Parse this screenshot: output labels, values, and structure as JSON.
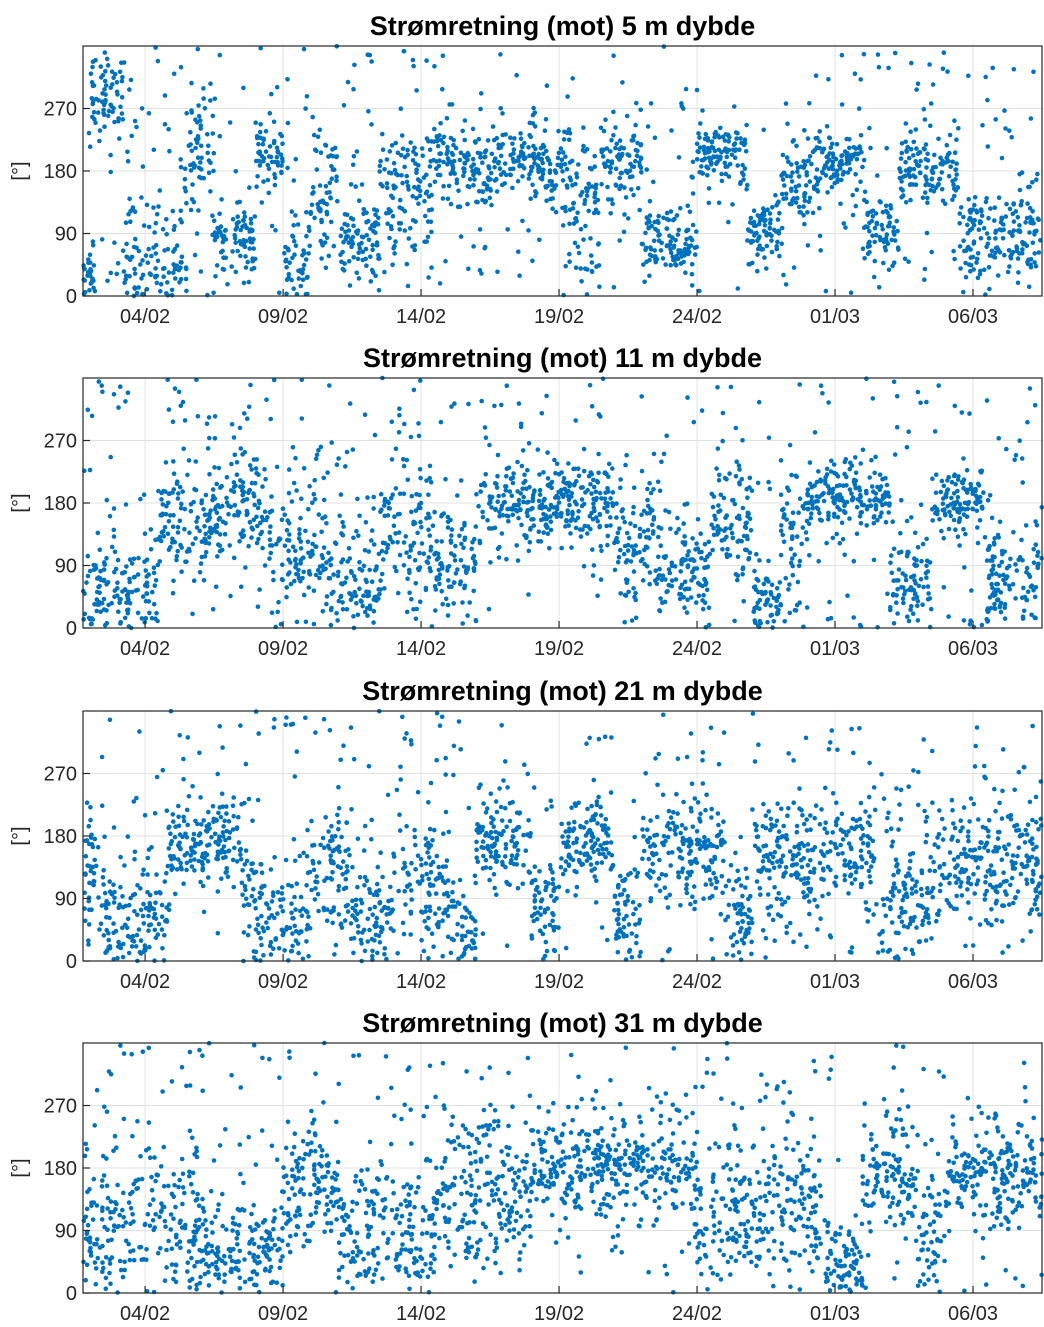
{
  "figure": {
    "background": "#ffffff",
    "point_color": "#0072BD",
    "grid_color": "#e2e2e2",
    "axis_color": "#262626"
  },
  "chart_data": [
    {
      "type": "scatter",
      "title": "Strømretning (mot) 5 m dybde",
      "ylabel": "[°]",
      "xlabel": "",
      "x_ticks": [
        "04/02",
        "09/02",
        "14/02",
        "19/02",
        "24/02",
        "01/03",
        "06/03"
      ],
      "y_ticks": [
        "0",
        "90",
        "180",
        "270"
      ],
      "ylim": [
        0,
        360
      ],
      "x_range_dates": [
        "2019-02-01T18:00",
        "2019-03-08T12:00"
      ],
      "grid": true,
      "seed": 11,
      "segments": [
        {
          "start": 1.75,
          "end": 2.2,
          "center": 25,
          "spread": 20
        },
        {
          "start": 2.0,
          "end": 3.2,
          "center": 285,
          "spread": 30
        },
        {
          "start": 3.2,
          "end": 4.2,
          "center": 40,
          "spread": 40
        },
        {
          "start": 4.2,
          "end": 5.5,
          "center": 60,
          "spread": 55
        },
        {
          "start": 5.5,
          "end": 6.5,
          "center": 215,
          "spread": 45
        },
        {
          "start": 6.5,
          "end": 8.0,
          "center": 85,
          "spread": 25
        },
        {
          "start": 8.0,
          "end": 9.0,
          "center": 200,
          "spread": 25
        },
        {
          "start": 9.0,
          "end": 10.0,
          "center": 40,
          "spread": 40
        },
        {
          "start": 10.0,
          "end": 11.0,
          "center": 150,
          "spread": 50
        },
        {
          "start": 11.0,
          "end": 12.5,
          "center": 75,
          "spread": 30
        },
        {
          "start": 12.5,
          "end": 14.5,
          "center": 155,
          "spread": 45
        },
        {
          "start": 14.5,
          "end": 16.5,
          "center": 185,
          "spread": 30
        },
        {
          "start": 16.5,
          "end": 18.5,
          "center": 195,
          "spread": 25
        },
        {
          "start": 18.5,
          "end": 19.5,
          "center": 170,
          "spread": 40
        },
        {
          "start": 19.5,
          "end": 20.5,
          "center": 120,
          "spread": 55
        },
        {
          "start": 20.5,
          "end": 22.0,
          "center": 195,
          "spread": 30
        },
        {
          "start": 22.0,
          "end": 24.0,
          "center": 75,
          "spread": 25
        },
        {
          "start": 24.0,
          "end": 25.8,
          "center": 205,
          "spread": 20
        },
        {
          "start": 25.8,
          "end": 27.0,
          "center": 95,
          "spread": 30
        },
        {
          "start": 27.0,
          "end": 28.5,
          "center": 170,
          "spread": 40
        },
        {
          "start": 28.5,
          "end": 30.0,
          "center": 195,
          "spread": 20
        },
        {
          "start": 30.0,
          "end": 31.3,
          "center": 90,
          "spread": 35
        },
        {
          "start": 31.3,
          "end": 33.5,
          "center": 180,
          "spread": 25
        },
        {
          "start": 33.5,
          "end": 35.0,
          "center": 80,
          "spread": 40
        },
        {
          "start": 35.0,
          "end": 36.5,
          "center": 90,
          "spread": 40
        }
      ]
    },
    {
      "type": "scatter",
      "title": "Strømretning (mot) 11 m dybde",
      "ylabel": "[°]",
      "xlabel": "",
      "x_ticks": [
        "04/02",
        "09/02",
        "14/02",
        "19/02",
        "24/02",
        "01/03",
        "06/03"
      ],
      "y_ticks": [
        "0",
        "90",
        "180",
        "270"
      ],
      "ylim": [
        0,
        360
      ],
      "x_range_dates": [
        "2019-02-01T18:00",
        "2019-03-08T12:00"
      ],
      "grid": true,
      "seed": 23,
      "segments": [
        {
          "start": 1.75,
          "end": 4.5,
          "center": 45,
          "spread": 40
        },
        {
          "start": 4.5,
          "end": 6.5,
          "center": 150,
          "spread": 45
        },
        {
          "start": 6.5,
          "end": 8.5,
          "center": 170,
          "spread": 35
        },
        {
          "start": 8.5,
          "end": 10.5,
          "center": 110,
          "spread": 55
        },
        {
          "start": 10.5,
          "end": 12.5,
          "center": 60,
          "spread": 45
        },
        {
          "start": 12.5,
          "end": 14.5,
          "center": 140,
          "spread": 55
        },
        {
          "start": 14.5,
          "end": 16.0,
          "center": 80,
          "spread": 45
        },
        {
          "start": 16.0,
          "end": 21.0,
          "center": 180,
          "spread": 30
        },
        {
          "start": 21.0,
          "end": 22.5,
          "center": 130,
          "spread": 50
        },
        {
          "start": 22.5,
          "end": 24.5,
          "center": 75,
          "spread": 40
        },
        {
          "start": 24.5,
          "end": 26.0,
          "center": 160,
          "spread": 50
        },
        {
          "start": 26.0,
          "end": 27.0,
          "center": 40,
          "spread": 25
        },
        {
          "start": 27.0,
          "end": 28.0,
          "center": 110,
          "spread": 55
        },
        {
          "start": 28.0,
          "end": 31.0,
          "center": 190,
          "spread": 25
        },
        {
          "start": 31.0,
          "end": 32.5,
          "center": 70,
          "spread": 40
        },
        {
          "start": 32.5,
          "end": 34.5,
          "center": 180,
          "spread": 25
        },
        {
          "start": 34.5,
          "end": 36.5,
          "center": 70,
          "spread": 40
        }
      ]
    },
    {
      "type": "scatter",
      "title": "Strømretning (mot) 21 m dybde",
      "ylabel": "[°]",
      "xlabel": "",
      "x_ticks": [
        "04/02",
        "09/02",
        "14/02",
        "19/02",
        "24/02",
        "01/03",
        "06/03"
      ],
      "y_ticks": [
        "0",
        "90",
        "180",
        "270"
      ],
      "ylim": [
        0,
        360
      ],
      "x_range_dates": [
        "2019-02-01T18:00",
        "2019-03-08T12:00"
      ],
      "grid": true,
      "seed": 37,
      "segments": [
        {
          "start": 1.75,
          "end": 2.5,
          "center": 120,
          "spread": 60
        },
        {
          "start": 2.5,
          "end": 4.8,
          "center": 55,
          "spread": 40
        },
        {
          "start": 4.8,
          "end": 7.5,
          "center": 170,
          "spread": 30
        },
        {
          "start": 7.5,
          "end": 10.0,
          "center": 65,
          "spread": 45
        },
        {
          "start": 10.0,
          "end": 11.5,
          "center": 130,
          "spread": 50
        },
        {
          "start": 11.5,
          "end": 13.0,
          "center": 60,
          "spread": 45
        },
        {
          "start": 13.0,
          "end": 15.0,
          "center": 100,
          "spread": 50
        },
        {
          "start": 15.0,
          "end": 16.0,
          "center": 40,
          "spread": 35
        },
        {
          "start": 16.0,
          "end": 18.0,
          "center": 170,
          "spread": 30
        },
        {
          "start": 18.0,
          "end": 19.0,
          "center": 80,
          "spread": 40
        },
        {
          "start": 19.0,
          "end": 21.0,
          "center": 170,
          "spread": 35
        },
        {
          "start": 21.0,
          "end": 22.0,
          "center": 60,
          "spread": 45
        },
        {
          "start": 22.0,
          "end": 25.0,
          "center": 160,
          "spread": 40
        },
        {
          "start": 25.0,
          "end": 26.0,
          "center": 60,
          "spread": 45
        },
        {
          "start": 26.0,
          "end": 30.5,
          "center": 150,
          "spread": 45
        },
        {
          "start": 30.5,
          "end": 32.5,
          "center": 90,
          "spread": 55
        },
        {
          "start": 32.5,
          "end": 36.5,
          "center": 140,
          "spread": 45
        }
      ]
    },
    {
      "type": "scatter",
      "title": "Strømretning (mot) 31 m dybde",
      "ylabel": "[°]",
      "xlabel": "",
      "x_ticks": [
        "04/02",
        "09/02",
        "14/02",
        "19/02",
        "24/02",
        "01/03",
        "06/03"
      ],
      "y_ticks": [
        "0",
        "90",
        "180",
        "270"
      ],
      "ylim": [
        0,
        360
      ],
      "x_range_dates": [
        "2019-02-01T18:00",
        "2019-03-08T12:00"
      ],
      "grid": true,
      "seed": 53,
      "segments": [
        {
          "start": 1.75,
          "end": 4.0,
          "center": 80,
          "spread": 55
        },
        {
          "start": 4.0,
          "end": 6.0,
          "center": 100,
          "spread": 60
        },
        {
          "start": 6.0,
          "end": 9.0,
          "center": 55,
          "spread": 45
        },
        {
          "start": 9.0,
          "end": 11.0,
          "center": 155,
          "spread": 45
        },
        {
          "start": 11.0,
          "end": 14.5,
          "center": 80,
          "spread": 55
        },
        {
          "start": 14.5,
          "end": 16.0,
          "center": 120,
          "spread": 55
        },
        {
          "start": 16.0,
          "end": 18.0,
          "center": 150,
          "spread": 50
        },
        {
          "start": 18.0,
          "end": 24.0,
          "center": 180,
          "spread": 35
        },
        {
          "start": 24.0,
          "end": 26.5,
          "center": 100,
          "spread": 55
        },
        {
          "start": 26.5,
          "end": 28.5,
          "center": 140,
          "spread": 50
        },
        {
          "start": 28.5,
          "end": 30.0,
          "center": 40,
          "spread": 35
        },
        {
          "start": 30.0,
          "end": 32.0,
          "center": 170,
          "spread": 40
        },
        {
          "start": 32.0,
          "end": 33.0,
          "center": 80,
          "spread": 45
        },
        {
          "start": 33.0,
          "end": 36.5,
          "center": 170,
          "spread": 40
        }
      ]
    }
  ]
}
